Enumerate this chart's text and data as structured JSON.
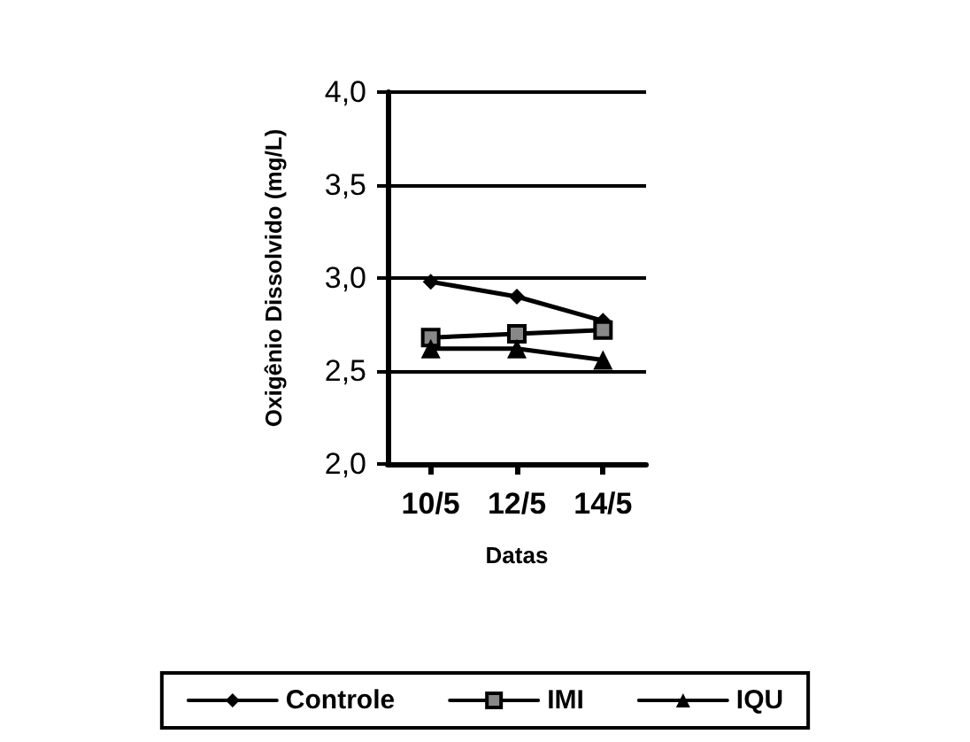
{
  "chart_data": {
    "type": "line",
    "xlabel": "Datas",
    "ylabel": "Oxigênio Dissolvido (mg/L)",
    "categories": [
      "10/5",
      "12/5",
      "14/5"
    ],
    "series": [
      {
        "name": "Controle",
        "color": "#000000",
        "marker": "diamond",
        "values": [
          2.98,
          2.9,
          2.77
        ]
      },
      {
        "name": "IMI",
        "color": "#000000",
        "marker": "square",
        "values": [
          2.68,
          2.7,
          2.72
        ]
      },
      {
        "name": "IQU",
        "color": "#000000",
        "marker": "triangle",
        "values": [
          2.62,
          2.62,
          2.56
        ]
      }
    ],
    "ylim": [
      2.0,
      4.0
    ],
    "yticks": [
      {
        "value": 2.0,
        "label": "2,0"
      },
      {
        "value": 2.5,
        "label": "2,5"
      },
      {
        "value": 3.0,
        "label": "3,0"
      },
      {
        "value": 3.5,
        "label": "3,5"
      },
      {
        "value": 4.0,
        "label": "4,0"
      }
    ],
    "grid": "y",
    "legend": "bottom",
    "line_style": "solid"
  }
}
